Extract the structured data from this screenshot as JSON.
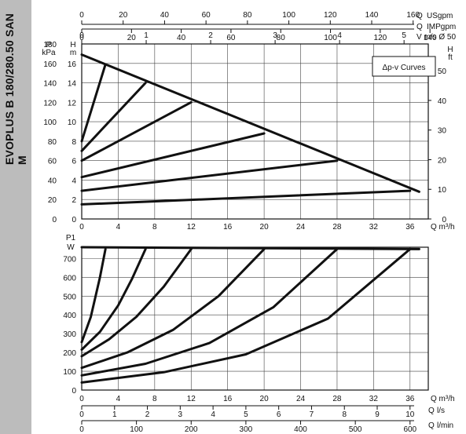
{
  "side_label": "EVOPLUS B 180/280.50 SAN M",
  "chart_data": [
    {
      "type": "line",
      "title": "Δp-v Curves",
      "xlabel": "Q m³/h",
      "ylabel_left": "H m",
      "ylabel_left_secondary": "P kPa",
      "ylabel_right": "H ft",
      "xlim": [
        0,
        38
      ],
      "ylim": [
        0,
        18
      ],
      "x_ticks": [
        0,
        4,
        8,
        12,
        16,
        20,
        24,
        28,
        32,
        36
      ],
      "y_ticks": [
        0,
        2,
        4,
        6,
        8,
        10,
        12,
        14,
        16
      ],
      "kpa_ticks": [
        0,
        20,
        40,
        60,
        80,
        100,
        120,
        140,
        160,
        180
      ],
      "ft_ticks": [
        0,
        10,
        20,
        30,
        40,
        50
      ],
      "grid": true,
      "top_axes": [
        {
          "label": "Q USgpm",
          "ticks": [
            0,
            20,
            40,
            60,
            80,
            100,
            120,
            140,
            160
          ]
        },
        {
          "label": "Q IMPgpm",
          "ticks": [
            0,
            20,
            40,
            60,
            80,
            100,
            120,
            140
          ]
        },
        {
          "label": "V m/s Ø 50",
          "ticks": [
            0,
            1,
            2,
            3,
            4,
            5
          ]
        }
      ],
      "series": [
        {
          "x": [
            0,
            37
          ],
          "y": [
            16.9,
            2.8
          ]
        },
        {
          "x": [
            0,
            2.6
          ],
          "y": [
            8.0,
            15.9
          ]
        },
        {
          "x": [
            0,
            7.0
          ],
          "y": [
            7.0,
            14.0
          ]
        },
        {
          "x": [
            0,
            12.0
          ],
          "y": [
            6.0,
            12.0
          ]
        },
        {
          "x": [
            0,
            20.0
          ],
          "y": [
            4.3,
            8.8
          ]
        },
        {
          "x": [
            0,
            28.0
          ],
          "y": [
            2.9,
            6.0
          ]
        },
        {
          "x": [
            0,
            36.0
          ],
          "y": [
            1.5,
            2.9
          ]
        }
      ]
    },
    {
      "type": "line",
      "xlabel": "Q m³/h",
      "ylabel": "P1 W",
      "xlim": [
        0,
        38
      ],
      "ylim": [
        0,
        760
      ],
      "x_ticks": [
        0,
        4,
        8,
        12,
        16,
        20,
        24,
        28,
        32,
        36
      ],
      "y_ticks": [
        0,
        100,
        200,
        300,
        400,
        500,
        600,
        700
      ],
      "grid": true,
      "bottom_axes": [
        {
          "label": "Q l/s",
          "ticks": [
            0,
            1,
            2,
            3,
            4,
            5,
            6,
            7,
            8,
            9,
            10
          ]
        },
        {
          "label": "Q l/min",
          "ticks": [
            0,
            100,
            200,
            300,
            400,
            500,
            600
          ]
        }
      ],
      "series": [
        {
          "x": [
            0,
            37
          ],
          "y": [
            760,
            750
          ]
        },
        {
          "x": [
            0,
            1.0,
            2.0,
            2.6
          ],
          "y": [
            255,
            390,
            600,
            750
          ]
        },
        {
          "x": [
            0,
            2.0,
            4.0,
            5.5,
            7.0
          ],
          "y": [
            215,
            310,
            450,
            590,
            750
          ]
        },
        {
          "x": [
            0,
            3.0,
            6.0,
            9.0,
            12.0
          ],
          "y": [
            180,
            270,
            390,
            550,
            750
          ]
        },
        {
          "x": [
            0,
            5.0,
            10.0,
            15.0,
            20.0
          ],
          "y": [
            118,
            200,
            320,
            500,
            750
          ]
        },
        {
          "x": [
            0,
            7.0,
            14.0,
            21.0,
            28.0
          ],
          "y": [
            78,
            140,
            250,
            440,
            750
          ]
        },
        {
          "x": [
            0,
            9.0,
            18.0,
            27.0,
            36.0
          ],
          "y": [
            40,
            95,
            190,
            380,
            750
          ]
        }
      ]
    }
  ]
}
